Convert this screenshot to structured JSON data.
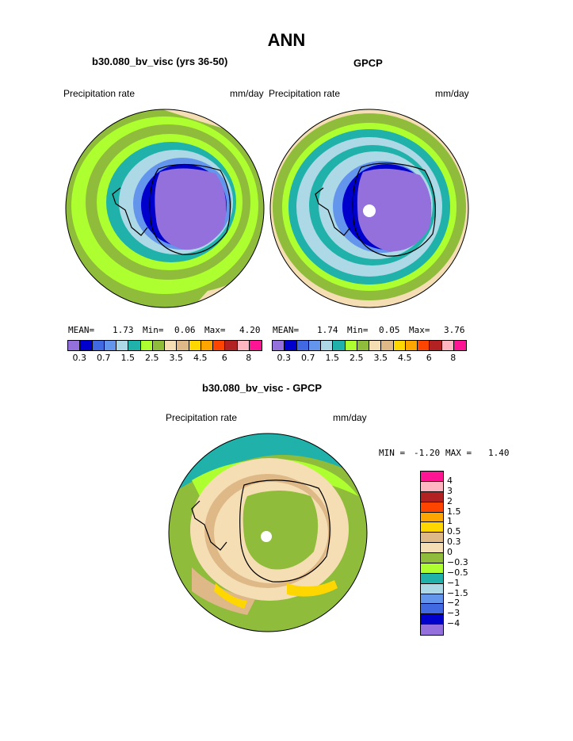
{
  "page": {
    "title": "ANN",
    "left_title": "b30.080_bv_visc (yrs 36-50)",
    "right_title": "GPCP",
    "diff_title": "b30.080_bv_visc - GPCP"
  },
  "panels": {
    "left": {
      "variable": "Precipitation rate",
      "units": "mm/day",
      "mean_label": "MEAN=",
      "mean": "1.73",
      "min_label": "Min=",
      "min": "0.06",
      "max_label": "Max=",
      "max": "4.20"
    },
    "right": {
      "variable": "Precipitation rate",
      "units": "mm/day",
      "mean_label": "MEAN=",
      "mean": "1.74",
      "min_label": "Min=",
      "min": "0.05",
      "max_label": "Max=",
      "max": "3.76"
    },
    "diff": {
      "variable": "Precipitation rate",
      "units": "mm/day",
      "min_label": "MIN =",
      "min": "-1.20",
      "max_label": "MAX =",
      "max": "1.40"
    }
  },
  "colorbar_abs": {
    "colors": [
      "#9370db",
      "#0000cd",
      "#4169e1",
      "#6495ed",
      "#add8e6",
      "#20b2aa",
      "#adff2f",
      "#8fbc3a",
      "#f5deb3",
      "#deb887",
      "#ffd700",
      "#ffa500",
      "#ff4500",
      "#b22222",
      "#ffb6c1",
      "#ff1493"
    ],
    "tick_labels": [
      "0.3",
      "0.7",
      "1.5",
      "2.5",
      "3.5",
      "4.5",
      "6",
      "8"
    ]
  },
  "colorbar_diff": {
    "colors": [
      "#ff1493",
      "#ffb6c1",
      "#b22222",
      "#ff4500",
      "#ffa500",
      "#ffd700",
      "#deb887",
      "#f5deb3",
      "#8fbc3a",
      "#adff2f",
      "#20b2aa",
      "#add8e6",
      "#6495ed",
      "#4169e1",
      "#0000cd",
      "#9370db"
    ],
    "tick_labels": [
      "4",
      "3",
      "2",
      "1.5",
      "1",
      "0.5",
      "0.3",
      "0",
      "−0.3",
      "−0.5",
      "−1",
      "−1.5",
      "−2",
      "−3",
      "−4"
    ]
  },
  "maps": {
    "left": {
      "region": "Antarctica",
      "projection": "south-polar-stereographic"
    },
    "right": {
      "region": "Antarctica",
      "projection": "south-polar-stereographic"
    },
    "diff": {
      "region": "Antarctica",
      "projection": "south-polar-stereographic"
    }
  }
}
